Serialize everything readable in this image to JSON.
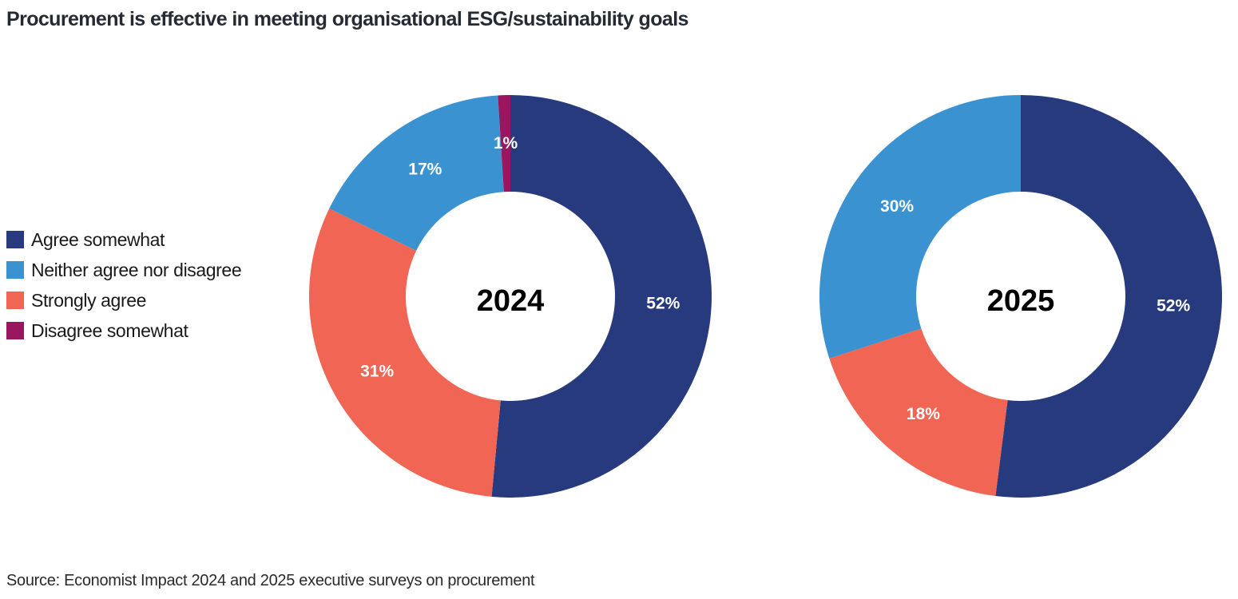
{
  "chart_data": {
    "type": "pie",
    "variant": "donut",
    "title": "Procurement is effective in meeting organisational ESG/sustainability goals",
    "source": "Source: Economist Impact 2024 and 2025 executive surveys on procurement",
    "legend_position": "left",
    "legend": [
      {
        "label": "Agree somewhat",
        "color": "#283a7e"
      },
      {
        "label": "Neither agree nor disagree",
        "color": "#3b92d0"
      },
      {
        "label": "Strongly agree",
        "color": "#f06553"
      },
      {
        "label": "Disagree somewhat",
        "color": "#98175e"
      }
    ],
    "charts": [
      {
        "center_label": "2024",
        "slices": [
          {
            "category": "Agree somewhat",
            "value": 52,
            "label": "52%",
            "color": "#283a7e"
          },
          {
            "category": "Strongly agree",
            "value": 31,
            "label": "31%",
            "color": "#f06553"
          },
          {
            "category": "Neither agree nor disagree",
            "value": 17,
            "label": "17%",
            "color": "#3b92d0"
          },
          {
            "category": "Disagree somewhat",
            "value": 1,
            "label": "1%",
            "color": "#98175e"
          }
        ]
      },
      {
        "center_label": "2025",
        "slices": [
          {
            "category": "Agree somewhat",
            "value": 52,
            "label": "52%",
            "color": "#283a7e"
          },
          {
            "category": "Strongly agree",
            "value": 18,
            "label": "18%",
            "color": "#f06553"
          },
          {
            "category": "Neither agree nor disagree",
            "value": 30,
            "label": "30%",
            "color": "#3b92d0"
          }
        ]
      }
    ]
  }
}
